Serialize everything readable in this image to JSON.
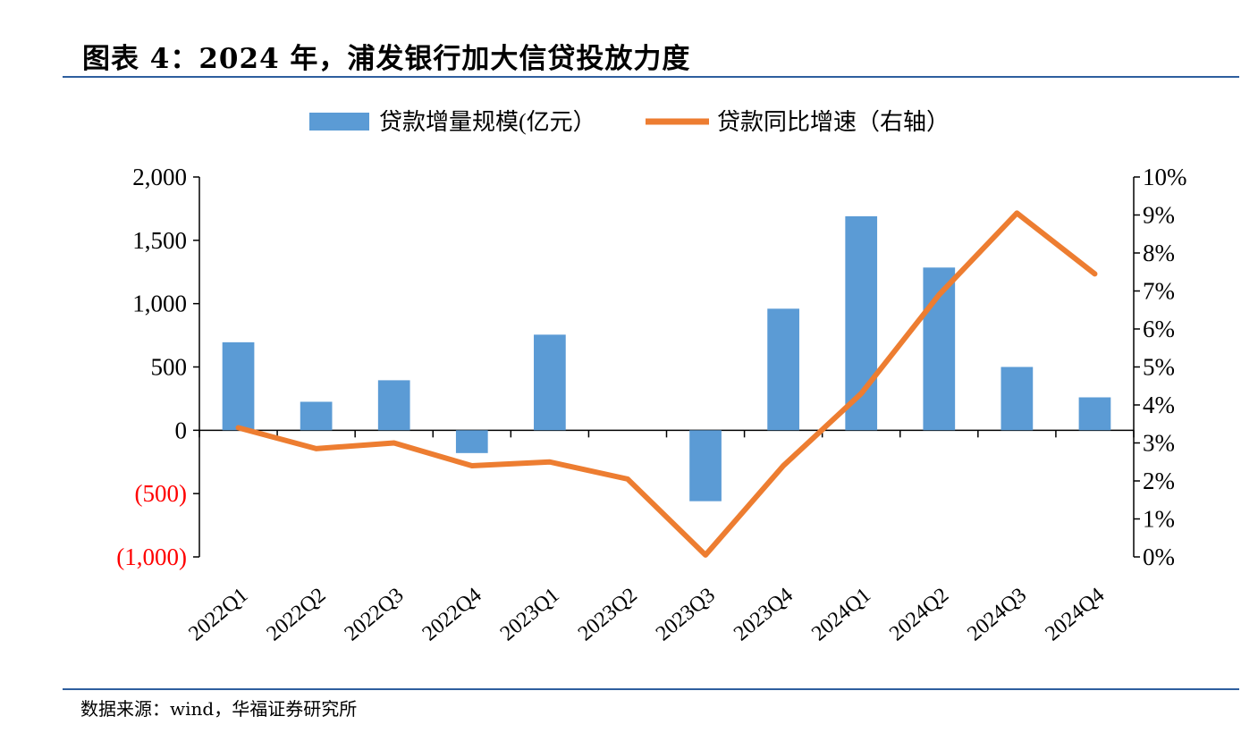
{
  "title": "图表 4：2024 年，浦发银行加大信贷投放力度",
  "source": "数据来源：wind，华福证券研究所",
  "colors": {
    "bar": "#5b9bd5",
    "line": "#ed7d31",
    "negative_tick": "#ff0000",
    "rule": "#2e5e9e"
  },
  "chart_data": {
    "type": "bar",
    "categories": [
      "2022Q1",
      "2022Q2",
      "2022Q3",
      "2022Q4",
      "2023Q1",
      "2023Q2",
      "2023Q3",
      "2023Q4",
      "2024Q1",
      "2024Q2",
      "2024Q3",
      "2024Q4"
    ],
    "series": [
      {
        "name": "贷款增量规模(亿元）",
        "type": "bar",
        "axis": "left",
        "values": [
          695,
          225,
          395,
          -180,
          755,
          0,
          -560,
          960,
          1690,
          1285,
          500,
          260
        ]
      },
      {
        "name": "贷款同比增速（右轴）",
        "type": "line",
        "axis": "right",
        "values": [
          3.4,
          2.85,
          3.0,
          2.4,
          2.5,
          2.05,
          0.05,
          2.4,
          4.3,
          6.9,
          9.05,
          7.45
        ]
      }
    ],
    "left_axis": {
      "min": -1000,
      "max": 2000,
      "ticks": [
        {
          "value": 2000,
          "label": "2,000"
        },
        {
          "value": 1500,
          "label": "1,500"
        },
        {
          "value": 1000,
          "label": "1,000"
        },
        {
          "value": 500,
          "label": "500"
        },
        {
          "value": 0,
          "label": "0"
        },
        {
          "value": -500,
          "label": "(500)"
        },
        {
          "value": -1000,
          "label": "(1,000)"
        }
      ]
    },
    "right_axis": {
      "min": 0,
      "max": 10,
      "ticks": [
        {
          "value": 10,
          "label": "10%"
        },
        {
          "value": 9,
          "label": "9%"
        },
        {
          "value": 8,
          "label": "8%"
        },
        {
          "value": 7,
          "label": "7%"
        },
        {
          "value": 6,
          "label": "6%"
        },
        {
          "value": 5,
          "label": "5%"
        },
        {
          "value": 4,
          "label": "4%"
        },
        {
          "value": 3,
          "label": "3%"
        },
        {
          "value": 2,
          "label": "2%"
        },
        {
          "value": 1,
          "label": "1%"
        },
        {
          "value": 0,
          "label": "0%"
        }
      ]
    },
    "legend": "top-center",
    "grid": false
  }
}
